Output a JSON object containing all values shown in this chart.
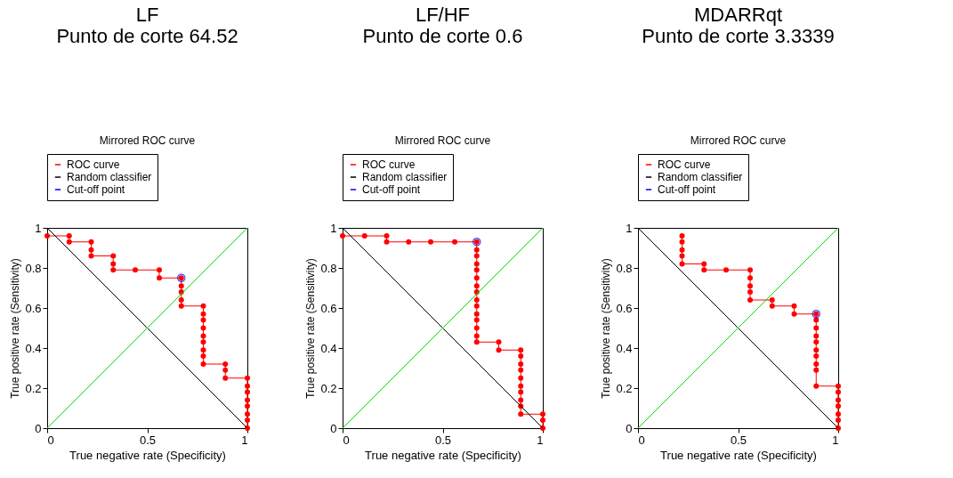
{
  "chart_data": [
    {
      "type": "line",
      "title": "LF\nPunto de corte 64.52",
      "subtitle": "Mirrored ROC curve",
      "xlabel": "True negative rate (Specificity)",
      "ylabel": "True positive rate (Sensitivity)",
      "xlim": [
        0,
        1
      ],
      "ylim": [
        0,
        1
      ],
      "xticks": [
        0,
        0.5,
        1
      ],
      "yticks": [
        0,
        0.2,
        0.4,
        0.6,
        0.8,
        1
      ],
      "grid": false,
      "legend": "top",
      "series": [
        {
          "name": "ROC curve",
          "color": "#ff0000",
          "marker": "circle",
          "x": [
            0,
            0.11,
            0.11,
            0.22,
            0.22,
            0.22,
            0.33,
            0.33,
            0.33,
            0.44,
            0.56,
            0.56,
            0.67,
            0.67,
            0.67,
            0.67,
            0.67,
            0.78,
            0.78,
            0.78,
            0.78,
            0.78,
            0.78,
            0.78,
            0.78,
            0.78,
            0.89,
            0.89,
            0.89,
            1,
            1,
            1,
            1,
            1,
            1,
            1,
            1
          ],
          "values": [
            0.96,
            0.96,
            0.93,
            0.93,
            0.89,
            0.86,
            0.86,
            0.82,
            0.79,
            0.79,
            0.79,
            0.75,
            0.75,
            0.71,
            0.68,
            0.64,
            0.61,
            0.61,
            0.57,
            0.54,
            0.5,
            0.46,
            0.43,
            0.39,
            0.36,
            0.32,
            0.32,
            0.29,
            0.25,
            0.25,
            0.21,
            0.18,
            0.14,
            0.11,
            0.07,
            0.04,
            0
          ]
        },
        {
          "name": "Random classifier",
          "color": "#000000",
          "marker": "none",
          "x": [
            0,
            1
          ],
          "values": [
            1,
            0
          ]
        },
        {
          "name": "Cut-off point",
          "type": "scatter",
          "color": "#0000ff",
          "marker": "circle",
          "x": [
            0.67
          ],
          "values": [
            0.75
          ]
        },
        {
          "color": "#00dd00",
          "marker": "none",
          "x": [
            0,
            1
          ],
          "values": [
            0,
            1
          ]
        }
      ]
    },
    {
      "type": "line",
      "title": "LF/HF\nPunto de corte 0.6",
      "subtitle": "Mirrored ROC curve",
      "xlabel": "True negative rate (Specificity)",
      "ylabel": "True positive rate (Sensitivity)",
      "xlim": [
        0,
        1
      ],
      "ylim": [
        0,
        1
      ],
      "xticks": [
        0,
        0.5,
        1
      ],
      "yticks": [
        0,
        0.2,
        0.4,
        0.6,
        0.8,
        1
      ],
      "grid": false,
      "legend": "top",
      "series": [
        {
          "name": "ROC curve",
          "color": "#ff0000",
          "marker": "circle",
          "x": [
            0,
            0.11,
            0.22,
            0.22,
            0.33,
            0.44,
            0.56,
            0.67,
            0.67,
            0.67,
            0.67,
            0.67,
            0.67,
            0.67,
            0.67,
            0.67,
            0.67,
            0.67,
            0.67,
            0.67,
            0.67,
            0.67,
            0.78,
            0.78,
            0.89,
            0.89,
            0.89,
            0.89,
            0.89,
            0.89,
            0.89,
            0.89,
            0.89,
            0.89,
            1,
            1,
            1
          ],
          "values": [
            0.96,
            0.96,
            0.96,
            0.93,
            0.93,
            0.93,
            0.93,
            0.93,
            0.89,
            0.86,
            0.82,
            0.79,
            0.75,
            0.71,
            0.68,
            0.64,
            0.61,
            0.57,
            0.54,
            0.5,
            0.46,
            0.43,
            0.43,
            0.39,
            0.39,
            0.36,
            0.32,
            0.29,
            0.25,
            0.21,
            0.18,
            0.14,
            0.11,
            0.07,
            0.07,
            0.04,
            0
          ]
        },
        {
          "name": "Random classifier",
          "color": "#000000",
          "marker": "none",
          "x": [
            0,
            1
          ],
          "values": [
            1,
            0
          ]
        },
        {
          "name": "Cut-off point",
          "type": "scatter",
          "color": "#0000ff",
          "marker": "circle",
          "x": [
            0.67
          ],
          "values": [
            0.93
          ]
        },
        {
          "color": "#00dd00",
          "marker": "none",
          "x": [
            0,
            1
          ],
          "values": [
            0,
            1
          ]
        }
      ]
    },
    {
      "type": "line",
      "title": "MDARRqt\nPunto de corte 3.3339",
      "subtitle": "Mirrored ROC curve",
      "xlabel": "True negative rate (Specificity)",
      "ylabel": "True positive rate (Sensitivity)",
      "xlim": [
        0,
        1
      ],
      "ylim": [
        0,
        1
      ],
      "xticks": [
        0,
        0.5,
        1
      ],
      "yticks": [
        0,
        0.2,
        0.4,
        0.6,
        0.8,
        1
      ],
      "grid": false,
      "legend": "top",
      "series": [
        {
          "name": "ROC curve",
          "color": "#ff0000",
          "marker": "circle",
          "x": [
            0.22,
            0.22,
            0.22,
            0.22,
            0.22,
            0.33,
            0.33,
            0.44,
            0.56,
            0.56,
            0.56,
            0.56,
            0.56,
            0.67,
            0.67,
            0.78,
            0.78,
            0.89,
            0.89,
            0.89,
            0.89,
            0.89,
            0.89,
            0.89,
            0.89,
            0.89,
            0.89,
            1,
            1,
            1,
            1,
            1,
            1,
            1
          ],
          "values": [
            0.96,
            0.93,
            0.89,
            0.86,
            0.82,
            0.82,
            0.79,
            0.79,
            0.79,
            0.75,
            0.71,
            0.68,
            0.64,
            0.64,
            0.61,
            0.61,
            0.57,
            0.57,
            0.54,
            0.5,
            0.46,
            0.43,
            0.39,
            0.36,
            0.32,
            0.29,
            0.21,
            0.21,
            0.18,
            0.14,
            0.11,
            0.07,
            0.04,
            0
          ]
        },
        {
          "name": "Random classifier",
          "color": "#000000",
          "marker": "none",
          "x": [
            0,
            1
          ],
          "values": [
            1,
            0
          ]
        },
        {
          "name": "Cut-off point",
          "type": "scatter",
          "color": "#0000ff",
          "marker": "circle",
          "x": [
            0.89
          ],
          "values": [
            0.57
          ]
        },
        {
          "color": "#00dd00",
          "marker": "none",
          "x": [
            0,
            1
          ],
          "values": [
            0,
            1
          ]
        }
      ]
    }
  ]
}
